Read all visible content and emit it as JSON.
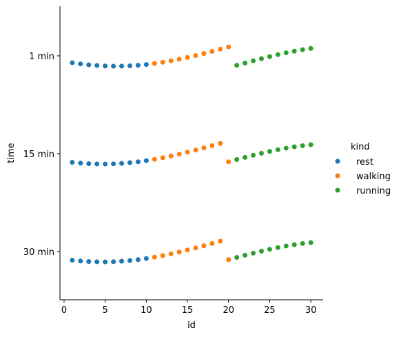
{
  "chart_data": {
    "type": "scatter",
    "title": "",
    "xlabel": "id",
    "ylabel": "time",
    "xlim": [
      -0.5,
      31.5
    ],
    "x_ticks": [
      0,
      5,
      10,
      15,
      20,
      25,
      30
    ],
    "y_categories": [
      "1 min",
      "15 min",
      "30 min"
    ],
    "grid": false,
    "legend": {
      "title": "kind",
      "placement": "right",
      "entries": [
        {
          "name": "rest",
          "color": "#1f77b4"
        },
        {
          "name": "walking",
          "color": "#ff7f0e"
        },
        {
          "name": "running",
          "color": "#2ca02c"
        }
      ]
    },
    "series": [
      {
        "name": "rest",
        "color": "#1f77b4",
        "points": [
          {
            "x": 1,
            "y": "1 min"
          },
          {
            "x": 2,
            "y": "1 min"
          },
          {
            "x": 3,
            "y": "1 min"
          },
          {
            "x": 4,
            "y": "1 min"
          },
          {
            "x": 5,
            "y": "1 min"
          },
          {
            "x": 6,
            "y": "1 min"
          },
          {
            "x": 7,
            "y": "1 min"
          },
          {
            "x": 8,
            "y": "1 min"
          },
          {
            "x": 9,
            "y": "1 min"
          },
          {
            "x": 10,
            "y": "1 min"
          },
          {
            "x": 1,
            "y": "15 min"
          },
          {
            "x": 2,
            "y": "15 min"
          },
          {
            "x": 3,
            "y": "15 min"
          },
          {
            "x": 4,
            "y": "15 min"
          },
          {
            "x": 5,
            "y": "15 min"
          },
          {
            "x": 6,
            "y": "15 min"
          },
          {
            "x": 7,
            "y": "15 min"
          },
          {
            "x": 8,
            "y": "15 min"
          },
          {
            "x": 9,
            "y": "15 min"
          },
          {
            "x": 10,
            "y": "15 min"
          },
          {
            "x": 1,
            "y": "30 min"
          },
          {
            "x": 2,
            "y": "30 min"
          },
          {
            "x": 3,
            "y": "30 min"
          },
          {
            "x": 4,
            "y": "30 min"
          },
          {
            "x": 5,
            "y": "30 min"
          },
          {
            "x": 6,
            "y": "30 min"
          },
          {
            "x": 7,
            "y": "30 min"
          },
          {
            "x": 8,
            "y": "30 min"
          },
          {
            "x": 9,
            "y": "30 min"
          },
          {
            "x": 10,
            "y": "30 min"
          }
        ]
      },
      {
        "name": "walking",
        "color": "#ff7f0e",
        "points": [
          {
            "x": 11,
            "y": "1 min"
          },
          {
            "x": 12,
            "y": "1 min"
          },
          {
            "x": 13,
            "y": "1 min"
          },
          {
            "x": 14,
            "y": "1 min"
          },
          {
            "x": 15,
            "y": "1 min"
          },
          {
            "x": 16,
            "y": "1 min"
          },
          {
            "x": 17,
            "y": "1 min"
          },
          {
            "x": 18,
            "y": "1 min"
          },
          {
            "x": 19,
            "y": "1 min"
          },
          {
            "x": 20,
            "y": "1 min"
          },
          {
            "x": 11,
            "y": "15 min"
          },
          {
            "x": 12,
            "y": "15 min"
          },
          {
            "x": 13,
            "y": "15 min"
          },
          {
            "x": 14,
            "y": "15 min"
          },
          {
            "x": 15,
            "y": "15 min"
          },
          {
            "x": 16,
            "y": "15 min"
          },
          {
            "x": 17,
            "y": "15 min"
          },
          {
            "x": 18,
            "y": "15 min"
          },
          {
            "x": 19,
            "y": "15 min"
          },
          {
            "x": 20,
            "y": "15 min"
          },
          {
            "x": 11,
            "y": "30 min"
          },
          {
            "x": 12,
            "y": "30 min"
          },
          {
            "x": 13,
            "y": "30 min"
          },
          {
            "x": 14,
            "y": "30 min"
          },
          {
            "x": 15,
            "y": "30 min"
          },
          {
            "x": 16,
            "y": "30 min"
          },
          {
            "x": 17,
            "y": "30 min"
          },
          {
            "x": 18,
            "y": "30 min"
          },
          {
            "x": 19,
            "y": "30 min"
          },
          {
            "x": 20,
            "y": "30 min"
          }
        ]
      },
      {
        "name": "running",
        "color": "#2ca02c",
        "points": [
          {
            "x": 21,
            "y": "1 min"
          },
          {
            "x": 22,
            "y": "1 min"
          },
          {
            "x": 23,
            "y": "1 min"
          },
          {
            "x": 24,
            "y": "1 min"
          },
          {
            "x": 25,
            "y": "1 min"
          },
          {
            "x": 26,
            "y": "1 min"
          },
          {
            "x": 27,
            "y": "1 min"
          },
          {
            "x": 28,
            "y": "1 min"
          },
          {
            "x": 29,
            "y": "1 min"
          },
          {
            "x": 30,
            "y": "1 min"
          },
          {
            "x": 21,
            "y": "15 min"
          },
          {
            "x": 22,
            "y": "15 min"
          },
          {
            "x": 23,
            "y": "15 min"
          },
          {
            "x": 24,
            "y": "15 min"
          },
          {
            "x": 25,
            "y": "15 min"
          },
          {
            "x": 26,
            "y": "15 min"
          },
          {
            "x": 27,
            "y": "15 min"
          },
          {
            "x": 28,
            "y": "15 min"
          },
          {
            "x": 29,
            "y": "15 min"
          },
          {
            "x": 30,
            "y": "15 min"
          },
          {
            "x": 21,
            "y": "30 min"
          },
          {
            "x": 22,
            "y": "30 min"
          },
          {
            "x": 23,
            "y": "30 min"
          },
          {
            "x": 24,
            "y": "30 min"
          },
          {
            "x": 25,
            "y": "30 min"
          },
          {
            "x": 26,
            "y": "30 min"
          },
          {
            "x": 27,
            "y": "30 min"
          },
          {
            "x": 28,
            "y": "30 min"
          },
          {
            "x": 29,
            "y": "30 min"
          },
          {
            "x": 30,
            "y": "30 min"
          }
        ]
      }
    ]
  }
}
